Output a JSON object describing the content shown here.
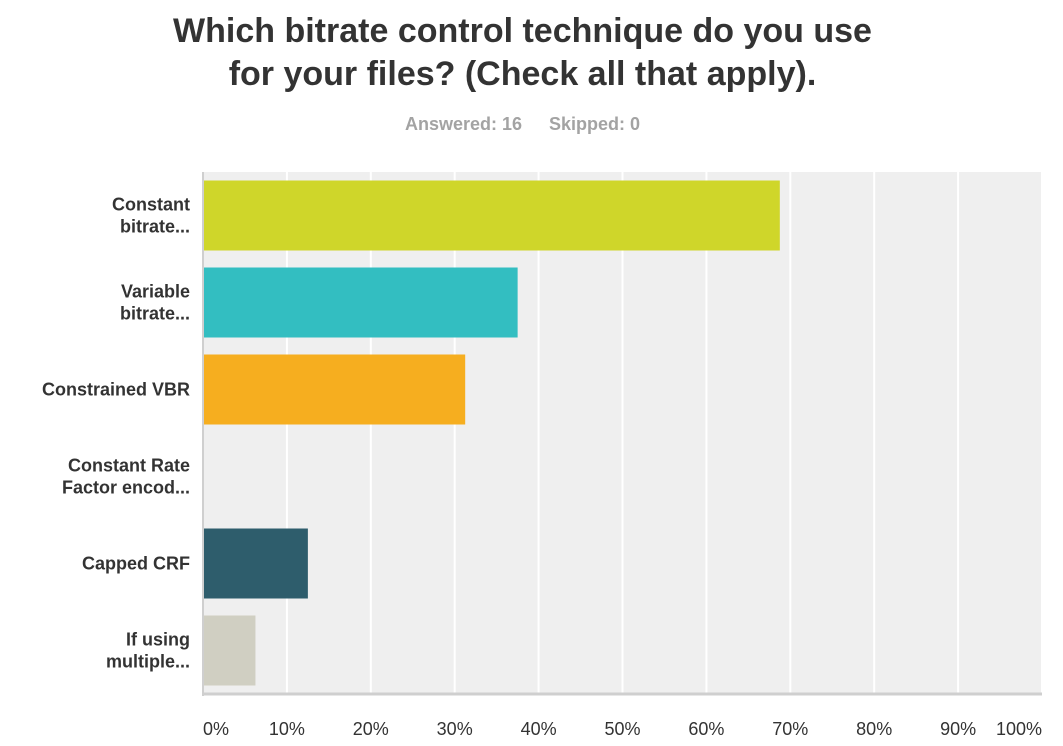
{
  "title_lines": [
    "Which bitrate control technique do you use",
    "for your files? (Check all that apply)."
  ],
  "answered": "Answered: 16",
  "skipped": "Skipped: 0",
  "colors": {
    "plot_bg": "#efefef",
    "grid": "#ffffff",
    "axis": "#cfcfcf"
  },
  "chart_data": {
    "type": "bar",
    "orientation": "horizontal",
    "title": "Which bitrate control technique do you use for your files? (Check all that apply).",
    "categories": [
      [
        "Constant",
        "bitrate..."
      ],
      [
        "Variable",
        "bitrate..."
      ],
      [
        "Constrained VBR"
      ],
      [
        "Constant Rate",
        "Factor encod..."
      ],
      [
        "Capped CRF"
      ],
      [
        "If using",
        "multiple..."
      ]
    ],
    "values": [
      68.75,
      37.5,
      31.25,
      0,
      12.5,
      6.25
    ],
    "bar_colors": [
      "#cfd62a",
      "#33bec1",
      "#f6ae1f",
      "#a4a4a4",
      "#2e5d6c",
      "#d0cfc2"
    ],
    "xlim": [
      0,
      100
    ],
    "x_ticks": [
      "0%",
      "10%",
      "20%",
      "30%",
      "40%",
      "50%",
      "60%",
      "70%",
      "80%",
      "90%",
      "100%"
    ],
    "grid": true,
    "xlabel": "",
    "ylabel": ""
  }
}
